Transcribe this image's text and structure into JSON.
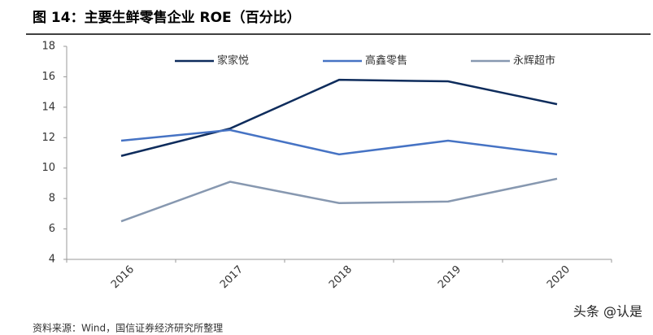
{
  "chart_data": {
    "type": "line",
    "title": "图 14：主要生鲜零售企业 ROE（百分比）",
    "source": "资料来源：Wind，国信证券经济研究所整理",
    "watermark": "头条 @认是",
    "categories": [
      "2016",
      "2017",
      "2018",
      "2019",
      "2020"
    ],
    "series": [
      {
        "name": "家家悦",
        "color": "#0e2c5c",
        "values": [
          10.8,
          12.6,
          15.8,
          15.7,
          14.2
        ]
      },
      {
        "name": "高鑫零售",
        "color": "#4673c4",
        "values": [
          11.8,
          12.5,
          10.9,
          11.8,
          10.9
        ]
      },
      {
        "name": "永辉超市",
        "color": "#8798b0",
        "values": [
          6.5,
          9.1,
          7.7,
          7.8,
          9.3
        ]
      }
    ],
    "ylim": [
      4,
      18
    ],
    "yticks": [
      4,
      6,
      8,
      10,
      12,
      14,
      16,
      18
    ],
    "grid": false,
    "legend": "top"
  }
}
